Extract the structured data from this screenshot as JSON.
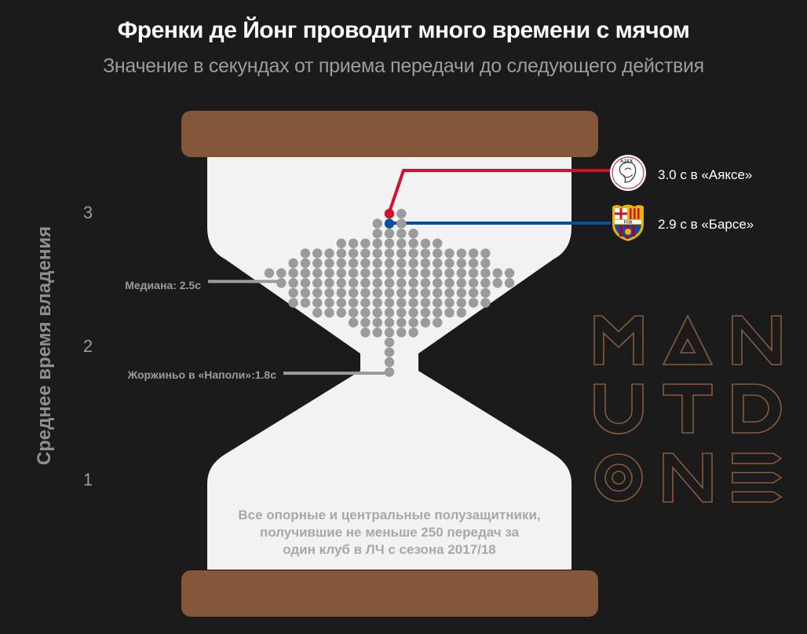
{
  "header": {
    "title": "Френки де Йонг проводит много времени с мячом",
    "subtitle": "Значение в секундах от приема передачи до следующего действия"
  },
  "colors": {
    "background": "#1b1b1b",
    "hourglass_frame": "#84563a",
    "glass": "#f2f2f2",
    "dot": "#9b9b9b",
    "ajax": "#d0102c",
    "barca": "#0a4f9e",
    "logo_outline": "#8a5a3a"
  },
  "chart_data": {
    "type": "scatter",
    "style": "beeswarm in hourglass",
    "ylabel": "Среднее время владения",
    "yticks": [
      "1",
      "2",
      "3"
    ],
    "ytick_values": [
      1,
      2,
      3
    ],
    "ylim": [
      0.8,
      3.4
    ],
    "grid": false,
    "rows": [
      {
        "value": 3.0,
        "count": 2
      },
      {
        "value": 2.925,
        "count": 3
      },
      {
        "value": 2.85,
        "count": 4
      },
      {
        "value": 2.775,
        "count": 9
      },
      {
        "value": 2.7,
        "count": 16
      },
      {
        "value": 2.625,
        "count": 17
      },
      {
        "value": 2.55,
        "count": 21
      },
      {
        "value": 2.475,
        "count": 20
      },
      {
        "value": 2.4,
        "count": 17
      },
      {
        "value": 2.325,
        "count": 17
      },
      {
        "value": 2.25,
        "count": 13
      },
      {
        "value": 2.175,
        "count": 8
      },
      {
        "value": 2.1,
        "count": 5
      },
      {
        "value": 2.025,
        "count": 1
      },
      {
        "value": 1.95,
        "count": 1
      },
      {
        "value": 1.875,
        "count": 1
      },
      {
        "value": 1.8,
        "count": 1
      }
    ],
    "highlights": {
      "ajax": {
        "value": 3.0,
        "label": "3.0 с в «Аяксе»",
        "logo": "ajax-crest"
      },
      "barca": {
        "value": 2.9,
        "label": "2.9 с в «Барсе»",
        "logo": "fcb-crest"
      }
    },
    "annotations": {
      "median": {
        "value": 2.5,
        "label": "Медиана: 2.5с"
      },
      "jorginho": {
        "value": 1.8,
        "label": "Жоржиньо в «Наполи»:1.8с"
      },
      "note": [
        "Все опорные и центральные полузащитники,",
        "получившие не меньше 250 передач за",
        "один клуб в ЛЧ с сезона 2017/18"
      ]
    }
  },
  "watermark": {
    "text": "MAN UTD ONE"
  }
}
